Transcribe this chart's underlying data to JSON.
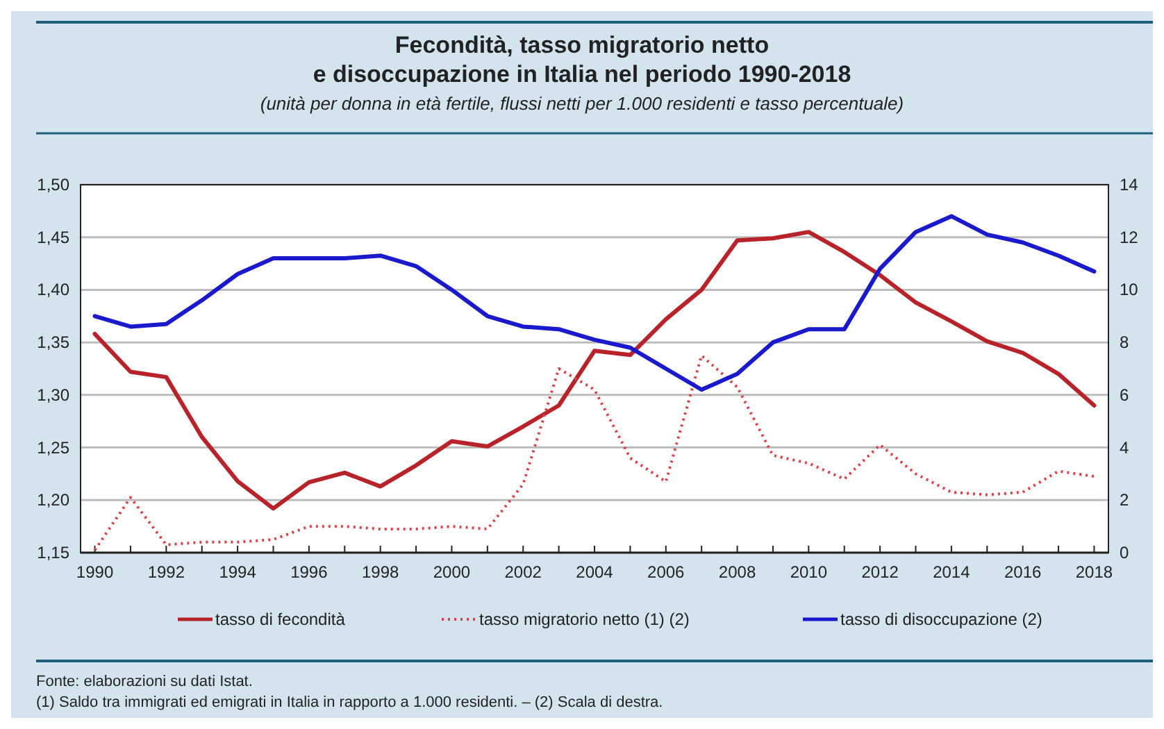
{
  "chart_data": {
    "type": "line",
    "title": "Fecondità, tasso migratorio netto\ne disoccupazione in Italia nel periodo 1990-2018",
    "subtitle": "(unità per donna in età fertile, flussi netti per 1.000 residenti e tasso percentuale)",
    "x": [
      1990,
      1991,
      1992,
      1993,
      1994,
      1995,
      1996,
      1997,
      1998,
      1999,
      2000,
      2001,
      2002,
      2003,
      2004,
      2005,
      2006,
      2007,
      2008,
      2009,
      2010,
      2011,
      2012,
      2013,
      2014,
      2015,
      2016,
      2017,
      2018
    ],
    "series": [
      {
        "name": "tasso di fecondità",
        "color": "#b8232a",
        "values": [
          1.358,
          1.322,
          1.317,
          1.26,
          1.218,
          1.192,
          1.217,
          1.226,
          1.213,
          1.233,
          1.256,
          1.251,
          1.27,
          1.29,
          1.342,
          1.338,
          1.372,
          1.4,
          1.447,
          1.449,
          1.455,
          1.436,
          1.414,
          1.388,
          1.37,
          1.351,
          1.34,
          1.32,
          1.29
        ]
      },
      {
        "name": "tasso migratorio netto (1) (2)",
        "color": "#d9424a",
        "axis": "y2",
        "line_style": "dotted",
        "values": [
          0.1,
          2.1,
          0.3,
          0.4,
          0.4,
          0.5,
          1.0,
          1.0,
          0.9,
          0.9,
          1.0,
          0.9,
          2.6,
          7.0,
          6.2,
          3.6,
          2.7,
          7.5,
          6.3,
          3.7,
          3.4,
          2.8,
          4.1,
          3.0,
          2.3,
          2.2,
          2.3,
          3.1,
          2.9
        ]
      },
      {
        "name": "tasso di disoccupazione (2)",
        "color": "#1a1acc",
        "axis": "y2",
        "values": [
          9.0,
          8.6,
          8.7,
          9.6,
          10.6,
          11.2,
          11.2,
          11.2,
          11.3,
          10.9,
          10.0,
          9.0,
          8.6,
          8.5,
          8.1,
          7.8,
          7.0,
          6.2,
          6.8,
          8.0,
          8.5,
          8.5,
          10.8,
          12.2,
          12.8,
          12.1,
          11.8,
          11.3,
          10.7
        ]
      }
    ],
    "xlim": [
      1989.6,
      2018.4
    ],
    "xticks": [
      1990,
      {
        "value": 1991,
        "label": null
      },
      1992,
      {
        "value": 1993,
        "label": null
      },
      1994,
      {
        "value": 1995,
        "label": null
      },
      1996,
      {
        "value": 1997,
        "label": null
      },
      1998,
      {
        "value": 1999,
        "label": null
      },
      2000,
      {
        "value": 2001,
        "label": null
      },
      2002,
      {
        "value": 2003,
        "label": null
      },
      2004,
      {
        "value": 2005,
        "label": null
      },
      2006,
      {
        "value": 2007,
        "label": null
      },
      2008,
      {
        "value": 2009,
        "label": null
      },
      2010,
      {
        "value": 2011,
        "label": null
      },
      2012,
      {
        "value": 2013,
        "label": null
      },
      2014,
      {
        "value": 2015,
        "label": null
      },
      2016,
      {
        "value": 2017,
        "label": null
      },
      2018
    ],
    "ylim": [
      1.15,
      1.5
    ],
    "yticks": [
      {
        "value": 1.15,
        "label": "1,15"
      },
      {
        "value": 1.2,
        "label": "1,20"
      },
      {
        "value": 1.25,
        "label": "1,25"
      },
      {
        "value": 1.3,
        "label": "1,30"
      },
      {
        "value": 1.35,
        "label": "1,35"
      },
      {
        "value": 1.4,
        "label": "1,40"
      },
      {
        "value": 1.45,
        "label": "1,45"
      },
      {
        "value": 1.5,
        "label": "1,50"
      }
    ],
    "y2lim": [
      0,
      14
    ],
    "y2ticks": [
      0,
      2,
      4,
      6,
      8,
      10,
      12,
      14
    ],
    "grid": "y",
    "legend": "bottom",
    "line_style": "solid",
    "annotations": [
      "Fonte: elaborazioni su dati Istat.",
      "(1) Saldo tra immigrati ed emigrati in Italia in rapporto a 1.000 residenti. – (2) Scala di destra."
    ]
  }
}
